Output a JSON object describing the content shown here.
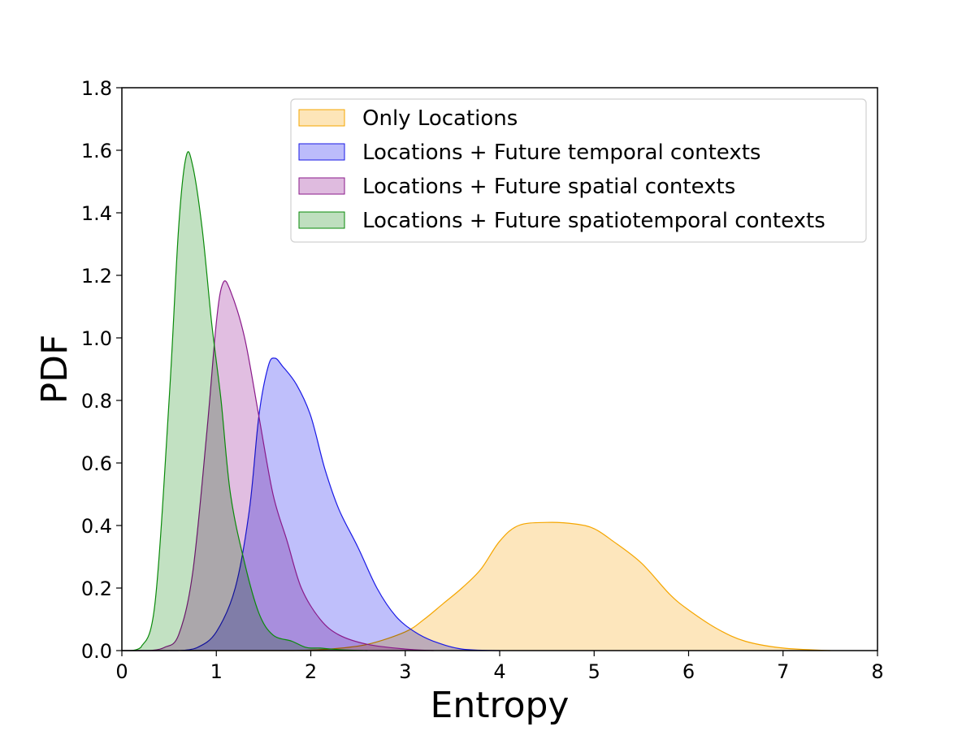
{
  "chart_data": {
    "type": "area",
    "title": "",
    "xlabel": "Entropy",
    "ylabel": "PDF",
    "xlim": [
      0,
      8
    ],
    "ylim": [
      0,
      1.8
    ],
    "xticks": [
      "0",
      "1",
      "2",
      "3",
      "4",
      "5",
      "6",
      "7",
      "8"
    ],
    "yticks": [
      "0.0",
      "0.2",
      "0.4",
      "0.6",
      "0.8",
      "1.0",
      "1.2",
      "1.4",
      "1.6",
      "1.8"
    ],
    "grid": false,
    "legend_position": "top-right",
    "series": [
      {
        "name": "Only Locations",
        "fill": "#fde5b8",
        "stroke": "#f5a600",
        "points": [
          [
            1.8,
            0
          ],
          [
            2.2,
            0.005
          ],
          [
            2.6,
            0.02
          ],
          [
            3.0,
            0.06
          ],
          [
            3.2,
            0.1
          ],
          [
            3.4,
            0.15
          ],
          [
            3.6,
            0.2
          ],
          [
            3.8,
            0.26
          ],
          [
            4.0,
            0.35
          ],
          [
            4.2,
            0.4
          ],
          [
            4.5,
            0.41
          ],
          [
            4.8,
            0.405
          ],
          [
            5.0,
            0.39
          ],
          [
            5.2,
            0.35
          ],
          [
            5.5,
            0.28
          ],
          [
            5.8,
            0.18
          ],
          [
            6.0,
            0.13
          ],
          [
            6.3,
            0.07
          ],
          [
            6.6,
            0.03
          ],
          [
            7.0,
            0.008
          ],
          [
            7.5,
            0
          ]
        ]
      },
      {
        "name": "Locations + Future temporal contexts",
        "fill": "#bcbcfb",
        "stroke": "#1a1ae6",
        "points": [
          [
            0.6,
            0
          ],
          [
            0.8,
            0.01
          ],
          [
            1.0,
            0.06
          ],
          [
            1.2,
            0.2
          ],
          [
            1.35,
            0.45
          ],
          [
            1.45,
            0.75
          ],
          [
            1.55,
            0.91
          ],
          [
            1.62,
            0.935
          ],
          [
            1.7,
            0.91
          ],
          [
            1.85,
            0.85
          ],
          [
            2.0,
            0.75
          ],
          [
            2.15,
            0.58
          ],
          [
            2.3,
            0.45
          ],
          [
            2.5,
            0.33
          ],
          [
            2.7,
            0.2
          ],
          [
            2.9,
            0.11
          ],
          [
            3.1,
            0.06
          ],
          [
            3.3,
            0.03
          ],
          [
            3.6,
            0.005
          ],
          [
            4.0,
            0
          ]
        ]
      },
      {
        "name": "Locations + Future spatial contexts",
        "fill": "#dfbbdf",
        "stroke": "#8a1a8a",
        "points": [
          [
            0.3,
            0
          ],
          [
            0.45,
            0.01
          ],
          [
            0.6,
            0.05
          ],
          [
            0.75,
            0.25
          ],
          [
            0.9,
            0.7
          ],
          [
            1.0,
            1.05
          ],
          [
            1.07,
            1.175
          ],
          [
            1.15,
            1.15
          ],
          [
            1.3,
            1.0
          ],
          [
            1.45,
            0.75
          ],
          [
            1.6,
            0.5
          ],
          [
            1.75,
            0.35
          ],
          [
            1.9,
            0.2
          ],
          [
            2.1,
            0.1
          ],
          [
            2.3,
            0.05
          ],
          [
            2.6,
            0.02
          ],
          [
            3.0,
            0.005
          ],
          [
            3.3,
            0
          ]
        ]
      },
      {
        "name": "Locations + Future spatiotemporal contexts",
        "fill": "#bfdfbf",
        "stroke": "#0a8a0a",
        "points": [
          [
            0.1,
            0
          ],
          [
            0.2,
            0.01
          ],
          [
            0.35,
            0.15
          ],
          [
            0.5,
            0.8
          ],
          [
            0.6,
            1.35
          ],
          [
            0.68,
            1.58
          ],
          [
            0.75,
            1.55
          ],
          [
            0.85,
            1.35
          ],
          [
            0.95,
            1.05
          ],
          [
            1.05,
            0.8
          ],
          [
            1.15,
            0.5
          ],
          [
            1.3,
            0.28
          ],
          [
            1.45,
            0.12
          ],
          [
            1.6,
            0.05
          ],
          [
            1.8,
            0.03
          ],
          [
            1.95,
            0.01
          ],
          [
            2.1,
            0.008
          ],
          [
            2.3,
            0.003
          ],
          [
            2.6,
            0
          ]
        ]
      }
    ]
  }
}
